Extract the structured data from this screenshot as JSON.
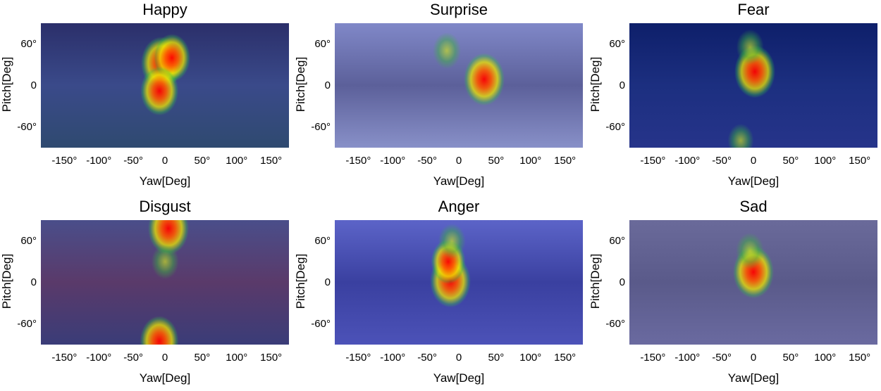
{
  "chart_data": [
    {
      "type": "heatmap",
      "title": "Happy",
      "xlabel": "Yaw[Deg]",
      "ylabel": "Pitch[Deg]",
      "xlim": [
        -180,
        180
      ],
      "ylim": [
        -90,
        90
      ],
      "xticks": [
        "-150°",
        "-100°",
        "-50°",
        "0",
        "50°",
        "100°",
        "150°"
      ],
      "yticks": [
        "60°",
        "0",
        "-60°"
      ],
      "background": [
        "#2b2f6a",
        "#3a4a8a",
        "#2f4a70"
      ],
      "hotspots": [
        {
          "yaw": -5,
          "pitch": 32,
          "intensity": 1.0
        },
        {
          "yaw": 10,
          "pitch": 40,
          "intensity": 0.8
        },
        {
          "yaw": -8,
          "pitch": -8,
          "intensity": 0.85
        }
      ]
    },
    {
      "type": "heatmap",
      "title": "Surprise",
      "xlabel": "Yaw[Deg]",
      "ylabel": "Pitch[Deg]",
      "xlim": [
        -180,
        180
      ],
      "ylim": [
        -90,
        90
      ],
      "xticks": [
        "-150°",
        "-100°",
        "-50°",
        "0",
        "50°",
        "100°",
        "150°"
      ],
      "yticks": [
        "60°",
        "0",
        "-60°"
      ],
      "background": [
        "#8088c8",
        "#5c609a",
        "#8890c8"
      ],
      "hotspots": [
        {
          "yaw": 37,
          "pitch": 9,
          "intensity": 1.0
        },
        {
          "yaw": -17,
          "pitch": 50,
          "intensity": 0.4
        }
      ]
    },
    {
      "type": "heatmap",
      "title": "Fear",
      "xlabel": "Yaw[Deg]",
      "ylabel": "Pitch[Deg]",
      "xlim": [
        -180,
        180
      ],
      "ylim": [
        -90,
        90
      ],
      "xticks": [
        "-150°",
        "-100°",
        "-50°",
        "0",
        "50°",
        "100°",
        "150°"
      ],
      "yticks": [
        "60°",
        "0",
        "-60°"
      ],
      "background": [
        "#0e1f6a",
        "#1c2f80",
        "#26348a"
      ],
      "hotspots": [
        {
          "yaw": 2,
          "pitch": 20,
          "intensity": 1.0
        },
        {
          "yaw": -5,
          "pitch": 55,
          "intensity": 0.35
        },
        {
          "yaw": -18,
          "pitch": -80,
          "intensity": 0.3
        }
      ]
    },
    {
      "type": "heatmap",
      "title": "Disgust",
      "xlabel": "Yaw[Deg]",
      "ylabel": "Pitch[Deg]",
      "xlim": [
        -180,
        180
      ],
      "ylim": [
        -90,
        90
      ],
      "xticks": [
        "-150°",
        "-100°",
        "-50°",
        "0",
        "50°",
        "100°",
        "150°"
      ],
      "yticks": [
        "60°",
        "0",
        "-60°"
      ],
      "background": [
        "#4a4e8a",
        "#5a3a6a",
        "#3a3c78"
      ],
      "hotspots": [
        {
          "yaw": 5,
          "pitch": 78,
          "intensity": 1.0
        },
        {
          "yaw": -8,
          "pitch": -85,
          "intensity": 0.9
        },
        {
          "yaw": 0,
          "pitch": 30,
          "intensity": 0.35
        }
      ]
    },
    {
      "type": "heatmap",
      "title": "Anger",
      "xlabel": "Yaw[Deg]",
      "ylabel": "Pitch[Deg]",
      "xlim": [
        -180,
        180
      ],
      "ylim": [
        -90,
        90
      ],
      "xticks": [
        "-150°",
        "-100°",
        "-50°",
        "0",
        "50°",
        "100°",
        "150°"
      ],
      "yticks": [
        "60°",
        "0",
        "-60°"
      ],
      "background": [
        "#5c64c8",
        "#3a40a0",
        "#4c52b8"
      ],
      "hotspots": [
        {
          "yaw": -12,
          "pitch": 2,
          "intensity": 1.0
        },
        {
          "yaw": -15,
          "pitch": 30,
          "intensity": 0.7
        },
        {
          "yaw": -10,
          "pitch": 60,
          "intensity": 0.35
        }
      ]
    },
    {
      "type": "heatmap",
      "title": "Sad",
      "xlabel": "Yaw[Deg]",
      "ylabel": "Pitch[Deg]",
      "xlim": [
        -180,
        180
      ],
      "ylim": [
        -90,
        90
      ],
      "xticks": [
        "-150°",
        "-100°",
        "-50°",
        "0",
        "50°",
        "100°",
        "150°"
      ],
      "yticks": [
        "60°",
        "0",
        "-60°"
      ],
      "background": [
        "#6a6a9a",
        "#5a5a8a",
        "#6a6aa0"
      ],
      "hotspots": [
        {
          "yaw": 0,
          "pitch": 15,
          "intensity": 1.0
        },
        {
          "yaw": -5,
          "pitch": 45,
          "intensity": 0.4
        }
      ]
    }
  ]
}
